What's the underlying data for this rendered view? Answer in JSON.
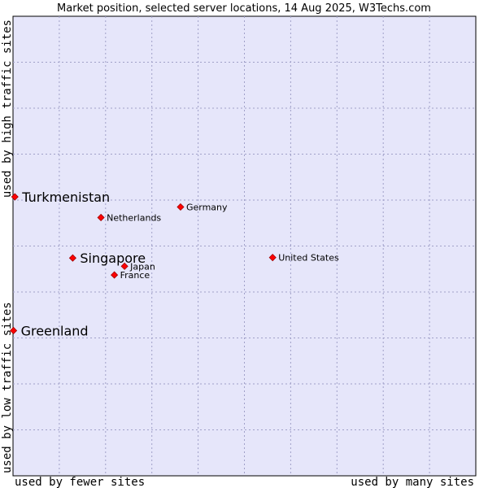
{
  "chart_data": {
    "type": "scatter",
    "title": "Market position, selected server locations, 14 Aug 2025, W3Techs.com",
    "xlabel_left": "used by fewer sites",
    "xlabel_right": "used by many sites",
    "ylabel_bottom": "used by low traffic sites",
    "ylabel_top": "used by high traffic sites",
    "xlim": [
      0,
      100
    ],
    "ylim": [
      0,
      100
    ],
    "grid": true,
    "colors": {
      "plot_bg": "#e6e6fa",
      "grid": "#a0a0c8",
      "marker": "#ff0000",
      "marker_edge": "#a00000"
    },
    "points": [
      {
        "label": "Turkmenistan",
        "x": 0.4,
        "y": 60.7,
        "highlight": true
      },
      {
        "label": "Netherlands",
        "x": 19.0,
        "y": 56.2,
        "highlight": false
      },
      {
        "label": "Germany",
        "x": 36.2,
        "y": 58.5,
        "highlight": false
      },
      {
        "label": "Singapore",
        "x": 12.9,
        "y": 47.4,
        "highlight": true
      },
      {
        "label": "Japan",
        "x": 24.1,
        "y": 45.6,
        "highlight": false
      },
      {
        "label": "France",
        "x": 21.9,
        "y": 43.7,
        "highlight": false
      },
      {
        "label": "United States",
        "x": 56.1,
        "y": 47.5,
        "highlight": false
      },
      {
        "label": "Greenland",
        "x": 0.1,
        "y": 31.6,
        "highlight": true
      }
    ]
  }
}
